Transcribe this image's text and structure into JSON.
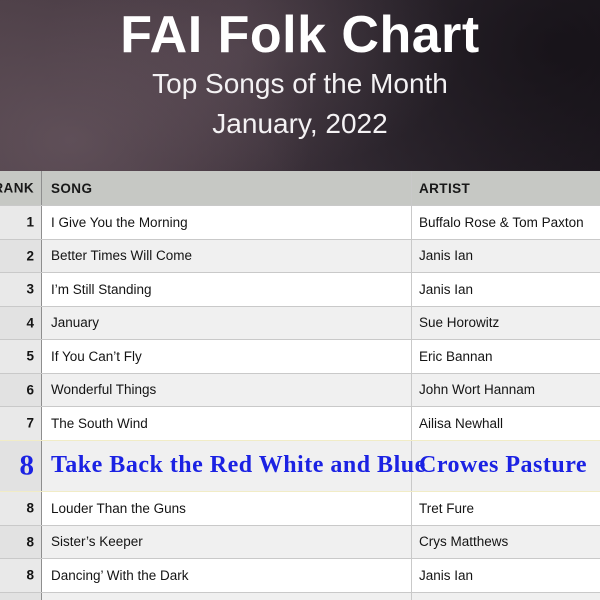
{
  "banner": {
    "title": "FAI Folk Chart",
    "subtitle": "Top Songs of the Month",
    "period": "January, 2022"
  },
  "chart_data": {
    "type": "table",
    "title": "FAI Folk Chart — Top Songs of the Month — January, 2022",
    "columns": [
      "RANK",
      "SONG",
      "ARTIST"
    ],
    "rows": [
      {
        "rank": "1",
        "song": "I Give You the Morning",
        "artist": "Buffalo Rose & Tom Paxton",
        "highlight": false
      },
      {
        "rank": "2",
        "song": "Better Times Will Come",
        "artist": "Janis Ian",
        "highlight": false
      },
      {
        "rank": "3",
        "song": "I’m Still Standing",
        "artist": "Janis Ian",
        "highlight": false
      },
      {
        "rank": "4",
        "song": "January",
        "artist": "Sue Horowitz",
        "highlight": false
      },
      {
        "rank": "5",
        "song": "If You Can’t Fly",
        "artist": "Eric Bannan",
        "highlight": false
      },
      {
        "rank": "6",
        "song": "Wonderful Things",
        "artist": "John Wort Hannam",
        "highlight": false
      },
      {
        "rank": "7",
        "song": "The South Wind",
        "artist": "Ailisa Newhall",
        "highlight": false
      },
      {
        "rank": "8",
        "song": "Take Back the Red White and Blue",
        "artist": "Crowes Pasture",
        "highlight": true
      },
      {
        "rank": "8",
        "song": "Louder Than the Guns",
        "artist": "Tret Fure",
        "highlight": false
      },
      {
        "rank": "8",
        "song": "Sister’s Keeper",
        "artist": "Crys Matthews",
        "highlight": false
      },
      {
        "rank": "8",
        "song": "Dancing’ With the Dark",
        "artist": "Janis Ian",
        "highlight": false
      }
    ]
  },
  "colors": {
    "highlight_text": "#1b22e3",
    "header_bg": "#c6c8c4",
    "row_alt_bg": "#f0f0f0",
    "banner_text": "#ffffff"
  }
}
